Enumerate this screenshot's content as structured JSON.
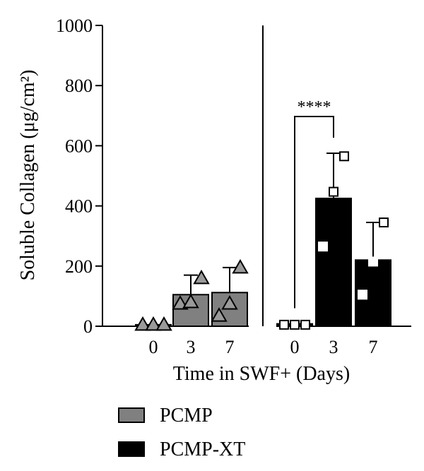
{
  "chart_data": {
    "type": "bar",
    "title": "",
    "xlabel": "Time in SWF+ (Days)",
    "ylabel": "Soluble Collagen (μg/cm²)",
    "ylim": [
      0,
      1000
    ],
    "yticks": [
      "0",
      "200",
      "400",
      "600",
      "800",
      "1000"
    ],
    "categories": [
      "0",
      "3",
      "7"
    ],
    "groups": [
      {
        "name": "PCMP",
        "color": "#808080",
        "marker": "triangle",
        "means": [
          5,
          105,
          112
        ],
        "error_upper": [
          null,
          170,
          195
        ],
        "points": [
          [
            5,
            5,
            5
          ],
          [
            75,
            80,
            160
          ],
          [
            35,
            75,
            195
          ]
        ]
      },
      {
        "name": "PCMP-XT",
        "color": "#000000",
        "marker": "square",
        "means": [
          8,
          425,
          220
        ],
        "error_upper": [
          null,
          575,
          345
        ],
        "points": [
          [
            5,
            5,
            5
          ],
          [
            265,
            447,
            565
          ],
          [
            105,
            215,
            345
          ]
        ]
      }
    ],
    "significance": {
      "label": "****",
      "from_category": "0",
      "to_category": "3",
      "group": "PCMP-XT"
    },
    "legend": {
      "position": "bottom-left",
      "entries": [
        "PCMP",
        "PCMP-XT"
      ]
    },
    "grid": false
  }
}
